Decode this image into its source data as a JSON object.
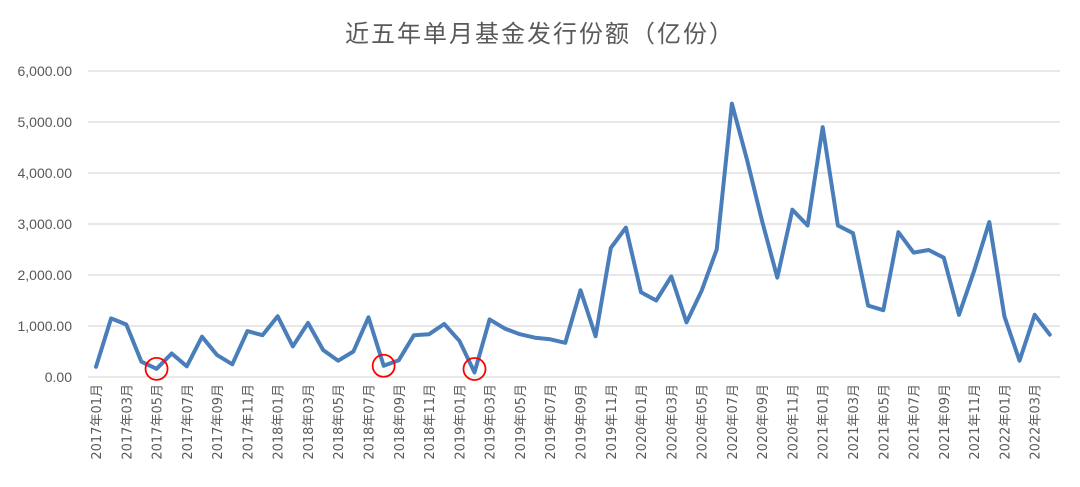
{
  "title": "近五年单月基金发行份额（亿份）",
  "colors": {
    "series": "#4a7ebb",
    "highlight": "#ff0000",
    "grid": "#d9d9d9",
    "text": "#595959"
  },
  "chart_data": {
    "type": "line",
    "title": "近五年单月基金发行份额（亿份）",
    "xlabel": "",
    "ylabel": "",
    "ylim": [
      0,
      6000
    ],
    "yticks": [
      0,
      1000,
      2000,
      3000,
      4000,
      5000,
      6000
    ],
    "ytick_labels": [
      "0.00",
      "1,000.00",
      "2,000.00",
      "3,000.00",
      "4,000.00",
      "5,000.00",
      "6,000.00"
    ],
    "grid": true,
    "legend": "none",
    "x": [
      "2017年01月",
      "2017年02月",
      "2017年03月",
      "2017年04月",
      "2017年05月",
      "2017年06月",
      "2017年07月",
      "2017年08月",
      "2017年09月",
      "2017年10月",
      "2017年11月",
      "2017年12月",
      "2018年01月",
      "2018年02月",
      "2018年03月",
      "2018年04月",
      "2018年05月",
      "2018年06月",
      "2018年07月",
      "2018年08月",
      "2018年09月",
      "2018年10月",
      "2018年11月",
      "2018年12月",
      "2019年01月",
      "2019年02月",
      "2019年03月",
      "2019年04月",
      "2019年05月",
      "2019年06月",
      "2019年07月",
      "2019年08月",
      "2019年09月",
      "2019年10月",
      "2019年11月",
      "2019年12月",
      "2020年01月",
      "2020年02月",
      "2020年03月",
      "2020年04月",
      "2020年05月",
      "2020年06月",
      "2020年07月",
      "2020年08月",
      "2020年09月",
      "2020年10月",
      "2020年11月",
      "2020年12月",
      "2021年01月",
      "2021年02月",
      "2021年03月",
      "2021年04月",
      "2021年05月",
      "2021年06月",
      "2021年07月",
      "2021年08月",
      "2021年09月",
      "2021年10月",
      "2021年11月",
      "2021年12月",
      "2022年01月",
      "2022年02月",
      "2022年03月",
      "2022年04月"
    ],
    "xtick_labels": [
      "2017年01月",
      "2017年03月",
      "2017年05月",
      "2017年07月",
      "2017年09月",
      "2017年11月",
      "2018年01月",
      "2018年03月",
      "2018年05月",
      "2018年07月",
      "2018年09月",
      "2018年11月",
      "2019年01月",
      "2019年03月",
      "2019年05月",
      "2019年07月",
      "2019年09月",
      "2019年11月",
      "2020年01月",
      "2020年03月",
      "2020年05月",
      "2020年07月",
      "2020年09月",
      "2020年11月",
      "2021年01月",
      "2021年03月",
      "2021年05月",
      "2021年07月",
      "2021年09月",
      "2021年11月",
      "2022年01月",
      "2022年03月"
    ],
    "series": [
      {
        "name": "单月基金发行份额",
        "values": [
          200,
          1150,
          1030,
          300,
          160,
          460,
          210,
          790,
          430,
          250,
          900,
          820,
          1190,
          600,
          1060,
          530,
          320,
          500,
          1170,
          220,
          330,
          820,
          840,
          1040,
          710,
          90,
          1130,
          950,
          840,
          770,
          740,
          670,
          1700,
          800,
          2530,
          2930,
          1660,
          1500,
          1970,
          1070,
          1690,
          2500,
          5360,
          4260,
          3050,
          1950,
          3280,
          2970,
          4900,
          2970,
          2820,
          1400,
          1310,
          2840,
          2440,
          2490,
          2340,
          1220,
          2080,
          3040,
          1190,
          320,
          1220,
          830
        ]
      }
    ],
    "annotations": [
      {
        "type": "circle",
        "at": "2017年05月",
        "color": "#ff0000"
      },
      {
        "type": "circle",
        "at": "2018年08月",
        "color": "#ff0000"
      },
      {
        "type": "circle",
        "at": "2019年02月",
        "color": "#ff0000"
      }
    ]
  }
}
